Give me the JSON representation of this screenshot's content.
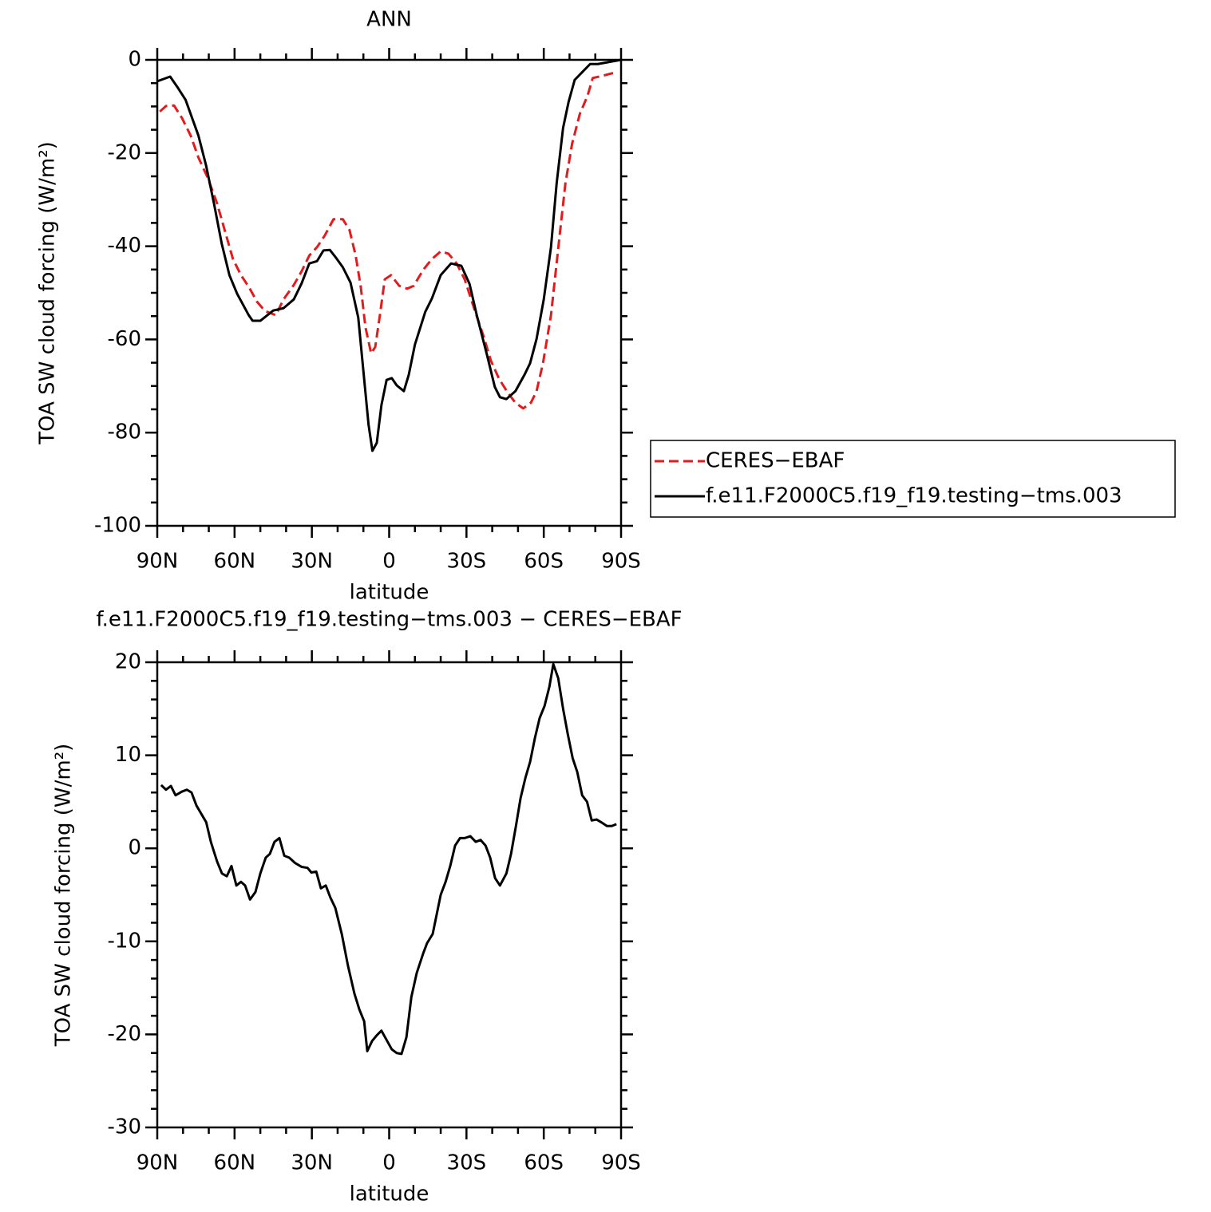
{
  "chart_data": [
    {
      "type": "line",
      "title": "ANN",
      "xlabel": "latitude",
      "ylabel": "TOA SW cloud forcing (W/m²)",
      "xlim": [
        90,
        -90
      ],
      "xticks": [
        {
          "value": 90,
          "label": "90N"
        },
        {
          "value": 60,
          "label": "60N"
        },
        {
          "value": 30,
          "label": "30N"
        },
        0,
        {
          "value": -30,
          "label": "30S"
        },
        {
          "value": -60,
          "label": "60S"
        },
        {
          "value": -90,
          "label": "90S"
        }
      ],
      "ylim": [
        -100,
        0
      ],
      "yticks": [
        -100,
        -80,
        -60,
        -40,
        -20,
        0
      ],
      "legend": "right",
      "series": [
        {
          "name": "CERES−EBAF",
          "color": "#e41a1c",
          "dash": true,
          "x": [
            89,
            86.6,
            83.5,
            80.4,
            77,
            74,
            70.5,
            66.8,
            63.7,
            60.6,
            57.5,
            54.4,
            51.3,
            48.2,
            44,
            41,
            37,
            34,
            31,
            28,
            25,
            21.6,
            18,
            15.4,
            13,
            11,
            9.2,
            7,
            5.4,
            3.6,
            1.7,
            -0.7,
            -3.9,
            -7,
            -9.5,
            -13.3,
            -16.5,
            -20,
            -23,
            -26.2,
            -29.3,
            -33.3,
            -36.5,
            -39.5,
            -42.7,
            -46,
            -49,
            -52,
            -55,
            -57.2,
            -59.7,
            -62.8,
            -66,
            -68.4,
            -71,
            -74,
            -77,
            -79,
            -83,
            -86.4,
            -88
          ],
          "values": [
            -11.1,
            -9.9,
            -9.8,
            -12.5,
            -16.3,
            -21,
            -25.2,
            -30.8,
            -36.8,
            -42.8,
            -46.2,
            -48.8,
            -51.9,
            -53.9,
            -54.8,
            -51.4,
            -48.3,
            -45.4,
            -42,
            -40.2,
            -37.7,
            -34.2,
            -34.2,
            -36.5,
            -42,
            -48.8,
            -57.4,
            -63,
            -61.6,
            -54.8,
            -47.1,
            -46.2,
            -48.5,
            -49.1,
            -48.5,
            -45,
            -42.8,
            -41.1,
            -41.6,
            -43.7,
            -47.1,
            -53.9,
            -59.1,
            -64.6,
            -68.5,
            -71.4,
            -73.6,
            -74.8,
            -73.6,
            -71.1,
            -65.1,
            -54.8,
            -38.5,
            -26.5,
            -18,
            -11.6,
            -7.7,
            -3.9,
            -3.4,
            -2.9,
            -2.9
          ]
        },
        {
          "name": "f.e11.F2000C5.f19_f19.testing−tms.003",
          "color": "#000000",
          "dash": false,
          "x": [
            90,
            85,
            82,
            79,
            74,
            71,
            68,
            65,
            62,
            59,
            54.5,
            53,
            50,
            45,
            41,
            37,
            34,
            31,
            28,
            25.5,
            23,
            20.6,
            18,
            15,
            12,
            10,
            8,
            6.5,
            4.8,
            3,
            1,
            -1,
            -3,
            -5.7,
            -7.6,
            -10,
            -14,
            -16.6,
            -20,
            -24,
            -28,
            -31.2,
            -34,
            -38,
            -41,
            -43,
            -45.5,
            -49,
            -52.5,
            -54.7,
            -57.2,
            -60,
            -62.8,
            -65,
            -67.5,
            -69.6,
            -72,
            -75,
            -78,
            -81,
            -90
          ],
          "values": [
            -4.6,
            -3.6,
            -6,
            -8.6,
            -16.3,
            -22.8,
            -30.8,
            -39.4,
            -46.2,
            -50.2,
            -54.8,
            -56,
            -56,
            -53.8,
            -53.3,
            -51.4,
            -48,
            -43.7,
            -43.2,
            -40.9,
            -40.8,
            -42.5,
            -44.5,
            -47.8,
            -55.3,
            -66.8,
            -78.3,
            -83.9,
            -82.2,
            -74.1,
            -68.7,
            -68.3,
            -69.9,
            -71.1,
            -67.6,
            -61.1,
            -54.1,
            -51.2,
            -46.2,
            -43.7,
            -44.2,
            -48.1,
            -54.8,
            -63.4,
            -70.2,
            -72.4,
            -72.8,
            -71.1,
            -67.6,
            -65.1,
            -59.9,
            -51.4,
            -40.2,
            -26.5,
            -14.6,
            -9.1,
            -4.3,
            -2.6,
            -0.9,
            -0.9,
            0
          ]
        }
      ]
    },
    {
      "type": "line",
      "title": "f.e11.F2000C5.f19_f19.testing−tms.003 − CERES−EBAF",
      "xlabel": "latitude",
      "ylabel": "TOA SW cloud forcing (W/m²)",
      "xlim": [
        90,
        -90
      ],
      "xticks": [
        {
          "value": 90,
          "label": "90N"
        },
        {
          "value": 60,
          "label": "60N"
        },
        {
          "value": 30,
          "label": "30N"
        },
        0,
        {
          "value": -30,
          "label": "30S"
        },
        {
          "value": -60,
          "label": "60S"
        },
        {
          "value": -90,
          "label": "90S"
        }
      ],
      "ylim": [
        -30,
        20
      ],
      "yticks": [
        -30,
        -20,
        -10,
        0,
        10,
        20
      ],
      "series": [
        {
          "color": "#000000",
          "dash": false,
          "x": [
            88.5,
            86.6,
            84.7,
            82.9,
            80.4,
            78.5,
            76.7,
            74.8,
            71,
            69.2,
            66.8,
            64.9,
            63,
            61.2,
            59.3,
            57.5,
            55.9,
            54,
            51.9,
            50,
            47.9,
            46.3,
            44.5,
            42.6,
            40.7,
            38.8,
            36.4,
            33.9,
            31.7,
            30.2,
            28.3,
            26.5,
            24.6,
            22.8,
            20.9,
            18.4,
            16,
            13.5,
            11.6,
            9.7,
            8.5,
            6.6,
            4.8,
            3,
            0.8,
            -1,
            -2.9,
            -4.8,
            -6.7,
            -8.6,
            -10.7,
            -13.2,
            -14.7,
            -16.9,
            -20,
            -21.9,
            -23.7,
            -25.6,
            -27.5,
            -29.3,
            -31.5,
            -33.6,
            -35.5,
            -37.4,
            -39.2,
            -41.1,
            -43,
            -45.5,
            -47.3,
            -49.2,
            -51,
            -52.9,
            -54.7,
            -56.6,
            -58.4,
            -60.3,
            -62.2,
            -63.7,
            -65.6,
            -67.5,
            -69.3,
            -71.2,
            -73,
            -74.9,
            -76.8,
            -78.6,
            -80.5,
            -82.3,
            -84.5,
            -86.4,
            -88.2
          ],
          "values": [
            6.8,
            6.3,
            6.7,
            5.7,
            6.1,
            6.3,
            6,
            4.6,
            2.8,
            0.7,
            -1.4,
            -2.7,
            -3,
            -1.9,
            -4,
            -3.6,
            -4,
            -5.5,
            -4.7,
            -2.7,
            -1,
            -0.6,
            0.7,
            1.1,
            -0.8,
            -1,
            -1.6,
            -2,
            -2.1,
            -2.6,
            -2.5,
            -4.3,
            -4,
            -5.3,
            -6.4,
            -9.2,
            -12.6,
            -15.6,
            -17.3,
            -18.6,
            -21.8,
            -20.7,
            -20.1,
            -19.6,
            -20.7,
            -21.6,
            -22,
            -22.1,
            -20.3,
            -16,
            -13.4,
            -11.3,
            -10.2,
            -9.2,
            -5,
            -3.6,
            -1.9,
            0.3,
            1.1,
            1.1,
            1.3,
            0.7,
            0.9,
            0.3,
            -1,
            -3.2,
            -4,
            -2.7,
            -0.6,
            2.4,
            5.4,
            7.6,
            9.3,
            11.9,
            14,
            15.3,
            17.4,
            19.8,
            18.3,
            15,
            12.3,
            9.7,
            8.2,
            5.7,
            5,
            3,
            3.1,
            2.8,
            2.4,
            2.4,
            2.6
          ]
        }
      ]
    }
  ]
}
